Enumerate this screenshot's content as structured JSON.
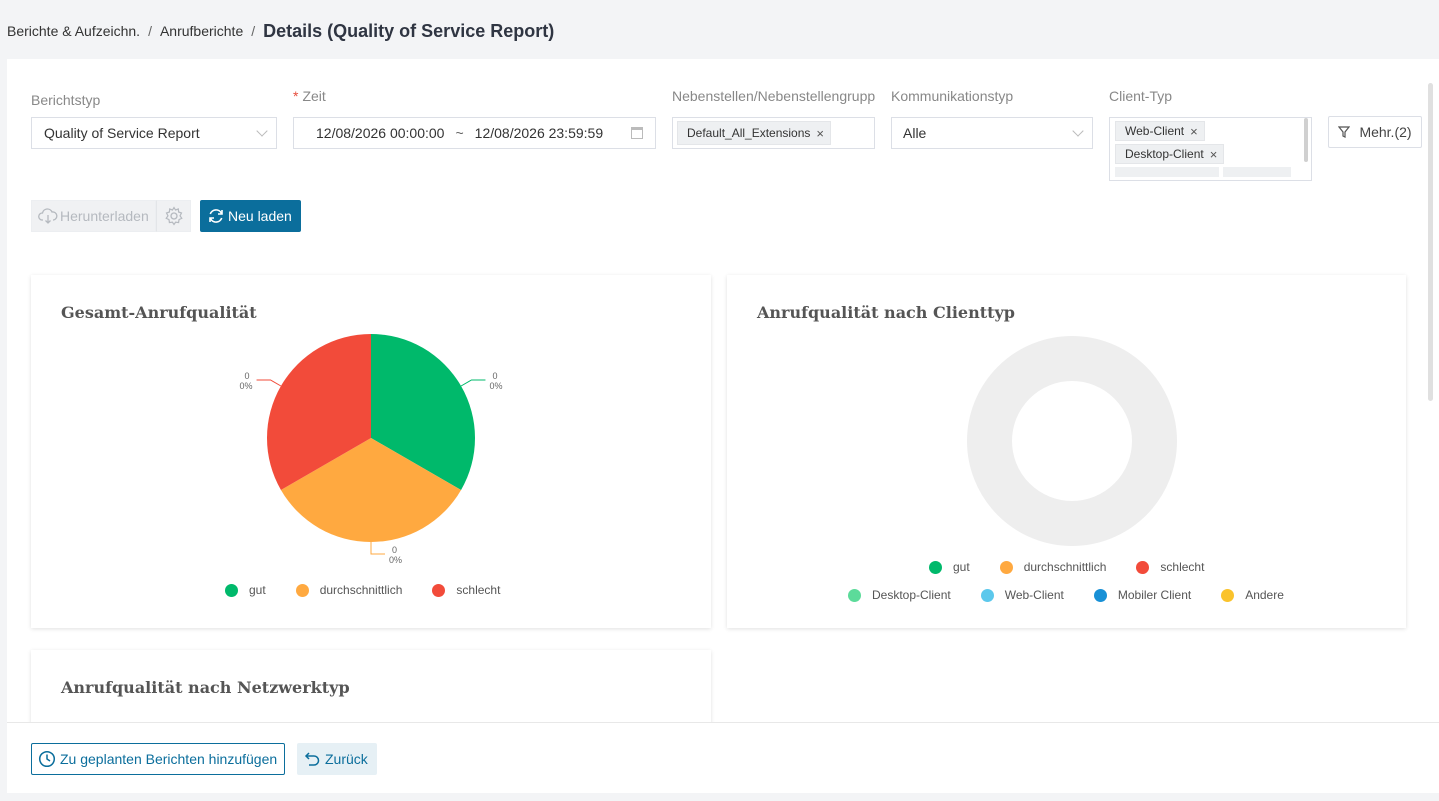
{
  "breadcrumb": {
    "item1": "Berichte & Aufzeichn.",
    "item2": "Anrufberichte",
    "sep": "/",
    "current": "Details (Quality of Service Report)"
  },
  "filters": {
    "report_type_label": "Berichtstyp",
    "report_type_value": "Quality of Service Report",
    "time_required": "*",
    "time_label": "Zeit",
    "time_start": "12/08/2026 00:00:00",
    "time_tilde": "~",
    "time_end": "12/08/2026 23:59:59",
    "extensions_label": "Nebenstellen/Nebenstellengrupp",
    "extensions_tag": "Default_All_Extensions",
    "comm_type_label": "Kommunikationstyp",
    "comm_type_value": "Alle",
    "client_type_label": "Client-Typ",
    "client_tags": [
      "Web-Client",
      "Desktop-Client"
    ],
    "more_label": "Mehr.(2)"
  },
  "toolbar": {
    "download_label": "Herunterladen",
    "reload_label": "Neu laden"
  },
  "cards": {
    "overall": {
      "title": "Gesamt-Anrufqualität",
      "legend": [
        "gut",
        "durchschnittlich",
        "schlecht"
      ]
    },
    "by_client": {
      "title": "Anrufqualität nach Clienttyp",
      "legend_row1": [
        "gut",
        "durchschnittlich",
        "schlecht"
      ],
      "legend_row2": [
        "Desktop-Client",
        "Web-Client",
        "Mobiler Client",
        "Andere"
      ]
    },
    "by_network": {
      "title": "Anrufqualität nach Netzwerktyp"
    }
  },
  "chart_data": {
    "type": "pie",
    "title": "Gesamt-Anrufqualität",
    "categories": [
      "gut",
      "durchschnittlich",
      "schlecht"
    ],
    "values": [
      0,
      0,
      0
    ],
    "percent_labels": [
      "0%",
      "0%",
      "0%"
    ],
    "colors": [
      "#00b96b",
      "#ffa940",
      "#f24b3a"
    ]
  },
  "colors": {
    "gut": "#00b96b",
    "durchschnittlich": "#ffa940",
    "schlecht": "#f24b3a",
    "desktop": "#5cdb9a",
    "web": "#5cc8ec",
    "mobile": "#1890d6",
    "other": "#fac32c",
    "primary": "#0b6e9c"
  },
  "footer": {
    "schedule_label": "Zu geplanten Berichten hinzufügen",
    "back_label": "Zurück"
  }
}
